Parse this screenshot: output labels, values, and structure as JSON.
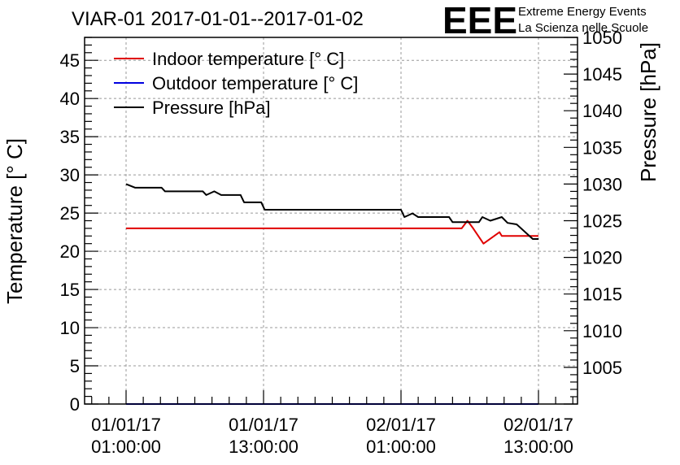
{
  "chart_data": {
    "type": "line",
    "title": "VIAR-01 2017-01-01--2017-01-02",
    "ylabel_left": "Temperature [° C]",
    "ylabel_right": "Pressure [hPa]",
    "xlabel": "",
    "ylim_left": [
      0,
      48
    ],
    "ylim_right": [
      1000,
      1050
    ],
    "grid": true,
    "legend_position": "top-left",
    "x_ticks": [
      {
        "line1": "01/01/17",
        "line2": "01:00:00",
        "hours": 1
      },
      {
        "line1": "01/01/17",
        "line2": "13:00:00",
        "hours": 13
      },
      {
        "line1": "02/01/17",
        "line2": "01:00:00",
        "hours": 25
      },
      {
        "line1": "02/01/17",
        "line2": "13:00:00",
        "hours": 37
      }
    ],
    "y_ticks_left": [
      0,
      5,
      10,
      15,
      20,
      25,
      30,
      35,
      40,
      45
    ],
    "y_ticks_right": [
      1005,
      1010,
      1015,
      1020,
      1025,
      1030,
      1035,
      1040,
      1045,
      1050
    ],
    "series": [
      {
        "name": "Indoor temperature [° C]",
        "axis": "left",
        "color": "#e00000",
        "points": [
          [
            1,
            23
          ],
          [
            30.3,
            23
          ],
          [
            30.8,
            24
          ],
          [
            31.3,
            23
          ],
          [
            32.2,
            21
          ],
          [
            33.6,
            22.5
          ],
          [
            33.8,
            22
          ],
          [
            37,
            22
          ]
        ]
      },
      {
        "name": "Outdoor temperature [° C]",
        "axis": "left",
        "color": "#0000e0",
        "points": [
          [
            1,
            0
          ],
          [
            37,
            0
          ]
        ]
      },
      {
        "name": "Pressure [hPa]",
        "axis": "right",
        "color": "#000000",
        "points": [
          [
            1,
            1030
          ],
          [
            1.8,
            1029.5
          ],
          [
            4.1,
            1029.5
          ],
          [
            4.4,
            1029
          ],
          [
            7.7,
            1029
          ],
          [
            8,
            1028.5
          ],
          [
            8.7,
            1029
          ],
          [
            9.3,
            1028.5
          ],
          [
            11,
            1028.5
          ],
          [
            11.3,
            1027.5
          ],
          [
            12.8,
            1027.5
          ],
          [
            13.1,
            1026.5
          ],
          [
            25,
            1026.5
          ],
          [
            25.3,
            1025.5
          ],
          [
            26,
            1026
          ],
          [
            26.5,
            1025.5
          ],
          [
            29.2,
            1025.5
          ],
          [
            29.5,
            1024.8
          ],
          [
            31.8,
            1024.8
          ],
          [
            32.1,
            1025.5
          ],
          [
            32.8,
            1025
          ],
          [
            33.8,
            1025.5
          ],
          [
            34.3,
            1024.7
          ],
          [
            35.1,
            1024.5
          ],
          [
            36.5,
            1022.5
          ],
          [
            37,
            1022.5
          ]
        ]
      }
    ],
    "annotations": [
      "Extreme Energy Events",
      "La Scienza nelle Scuole"
    ],
    "logo_text": "EEE",
    "colors": {
      "logo": "#0000dd",
      "grid": "#999999"
    }
  }
}
